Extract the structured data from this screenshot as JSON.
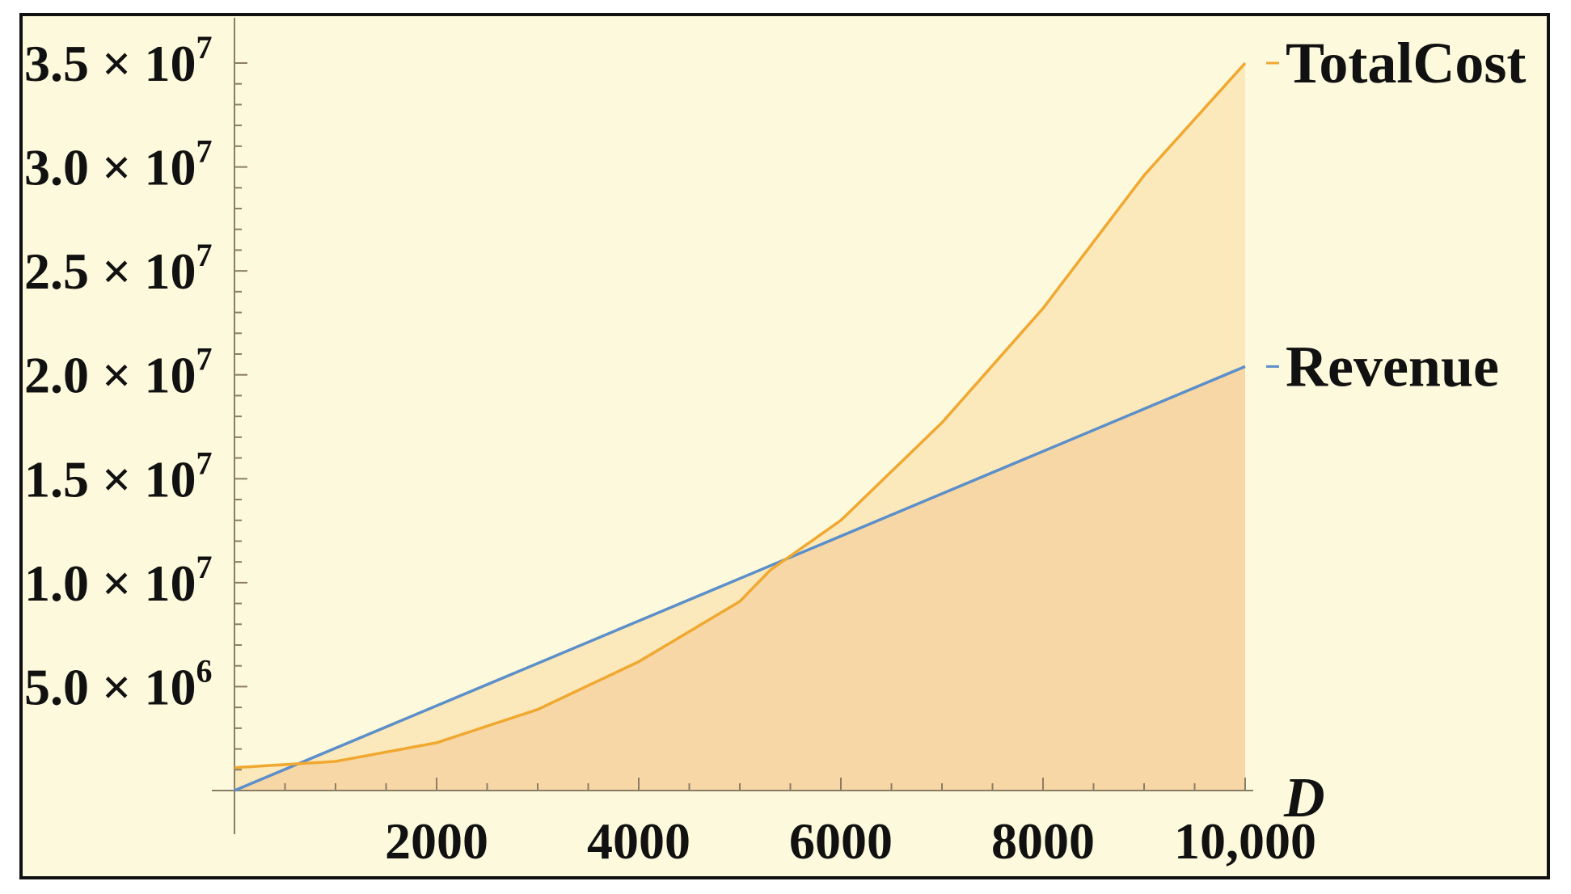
{
  "chart_data": {
    "type": "area",
    "title": "",
    "xlabel": "D",
    "ylabel": "",
    "xlim": [
      0,
      10000
    ],
    "ylim": [
      0,
      35000000
    ],
    "grid": false,
    "legend_placement": "right, labels at line ends",
    "x_ticks": [
      "2000",
      "4000",
      "6000",
      "8000",
      "10,000"
    ],
    "y_ticks": [
      {
        "value": 5000000,
        "mantissa": "5.0",
        "times": "×",
        "base": "10",
        "exp": "6"
      },
      {
        "value": 10000000,
        "mantissa": "1.0",
        "times": "×",
        "base": "10",
        "exp": "7"
      },
      {
        "value": 15000000,
        "mantissa": "1.5",
        "times": "×",
        "base": "10",
        "exp": "7"
      },
      {
        "value": 20000000,
        "mantissa": "2.0",
        "times": "×",
        "base": "10",
        "exp": "7"
      },
      {
        "value": 25000000,
        "mantissa": "2.5",
        "times": "×",
        "base": "10",
        "exp": "7"
      },
      {
        "value": 30000000,
        "mantissa": "3.0",
        "times": "×",
        "base": "10",
        "exp": "7"
      },
      {
        "value": 35000000,
        "mantissa": "3.5",
        "times": "×",
        "base": "10",
        "exp": "7"
      }
    ],
    "series": [
      {
        "name": "TotalCost",
        "color": "#f0a830",
        "fill": "#f8d9a8",
        "x": [
          0,
          1000,
          2000,
          3000,
          4000,
          5000,
          5300,
          6000,
          7000,
          8000,
          9000,
          10000
        ],
        "values": [
          1100000,
          1400000,
          2300000,
          3900000,
          6200000,
          9100000,
          10600000,
          13000000,
          17700000,
          23200000,
          29600000,
          35000000
        ]
      },
      {
        "name": "Revenue",
        "color": "#5b8fc9",
        "fill": "#f8d9a8",
        "x": [
          0,
          10000
        ],
        "values": [
          0,
          20400000
        ]
      }
    ]
  }
}
